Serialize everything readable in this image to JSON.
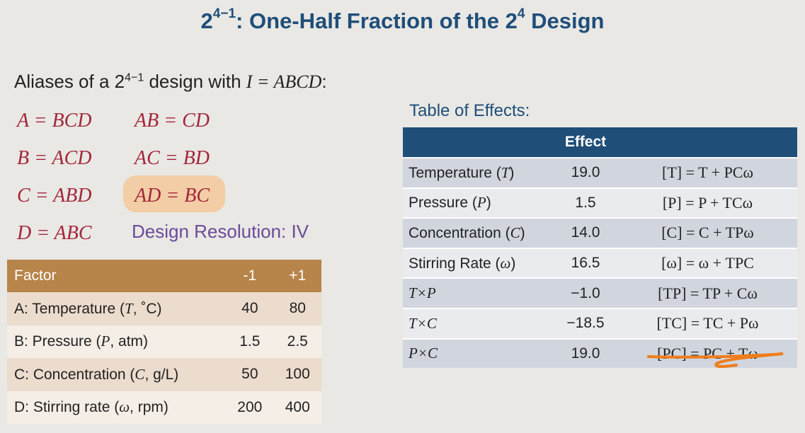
{
  "title": {
    "base": "2",
    "exponent": "4−1",
    "rest": ": One-Half Fraction of the 2",
    "exp2": "4",
    "tail": " Design"
  },
  "intro": {
    "prefix": "Aliases of a 2",
    "exponent": "4−1",
    "middle": " design with ",
    "relation": "I = ABCD",
    "suffix": ":"
  },
  "aliases": [
    [
      "A = BCD",
      "AB = CD"
    ],
    [
      "B = ACD",
      "AC = BD"
    ],
    [
      "C = ABD",
      "AD = BC"
    ],
    [
      "D = ABC"
    ]
  ],
  "resolution": "Design Resolution: IV",
  "factor_table": {
    "headers": [
      "Factor",
      "-1",
      "+1"
    ],
    "rows": [
      {
        "factor": "A: Temperature (",
        "sym": "T",
        "unit": ", ˚C)",
        "low": "40",
        "high": "80"
      },
      {
        "factor": "B: Pressure (",
        "sym": "P",
        "unit": ", atm)",
        "low": "1.5",
        "high": "2.5"
      },
      {
        "factor": "C: Concentration (",
        "sym": "C",
        "unit": ", g/L)",
        "low": "50",
        "high": "100"
      },
      {
        "factor": "D: Stirring rate (",
        "sym": "ω",
        "unit": ", rpm)",
        "low": "200",
        "high": "400"
      }
    ]
  },
  "effects": {
    "label": "Table of Effects:",
    "header": "Effect",
    "rows": [
      {
        "name": "Temperature (",
        "sym": "T",
        "close": ")",
        "value": "19.0",
        "alias": "[T] = T + PCω"
      },
      {
        "name": "Pressure (",
        "sym": "P",
        "close": ")",
        "value": "1.5",
        "alias": "[P] = P + TCω"
      },
      {
        "name": "Concentration (",
        "sym": "C",
        "close": ")",
        "value": "14.0",
        "alias": "[C] = C + TPω"
      },
      {
        "name": "Stirring Rate (",
        "sym": "ω",
        "close": ")",
        "value": "16.5",
        "alias": "[ω] = ω + TPC"
      },
      {
        "name": "",
        "sym": "T×P",
        "close": "",
        "value": "−1.0",
        "alias": "[TP] = TP + Cω"
      },
      {
        "name": "",
        "sym": "T×C",
        "close": "",
        "value": "−18.5",
        "alias": "[TC] = TC + Pω"
      },
      {
        "name": "",
        "sym": "P×C",
        "close": "",
        "value": "19.0",
        "alias": "[PC] = PC + Tω"
      }
    ]
  },
  "colors": {
    "title": "#1f4e79",
    "alias": "#a3263a",
    "highlight": "#f4c89a",
    "factor_header": "#b7844a",
    "effects_header": "#1f4e79",
    "underline": "#f07d1a"
  }
}
